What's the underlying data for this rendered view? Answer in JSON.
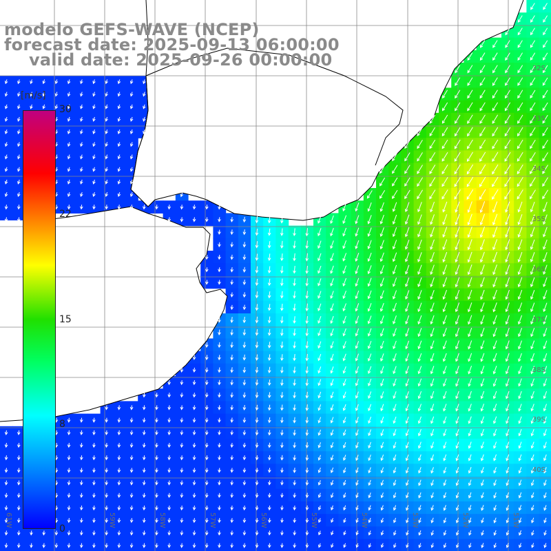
{
  "title": {
    "line1": "modelo GEFS-WAVE (NCEP)",
    "line2": "forecast date: 2025-09-13 06:00:00",
    "line3": "valid date: 2025-09-26 00:00:00"
  },
  "legend": {
    "unit": "[m/s]",
    "ticks": [
      "30",
      "22",
      "15",
      "8",
      "0"
    ],
    "colors": [
      "#0000ff",
      "#0090ff",
      "#00ffff",
      "#00ff60",
      "#20e000",
      "#ffff00",
      "#ff8000",
      "#ff0000",
      "#c00080"
    ]
  },
  "lat_labels": [
    "32S",
    "33S",
    "34S",
    "35S",
    "36S",
    "37S",
    "38S",
    "39S",
    "40S"
  ],
  "lon_labels": [
    "61W",
    "59W",
    "58W",
    "57W",
    "56W",
    "55W",
    "54W",
    "53W",
    "52W",
    "51W"
  ],
  "colors": {
    "land": "#ffffff",
    "coast": "#000000",
    "grid": "#888888",
    "arrow": "#ffffff"
  }
}
